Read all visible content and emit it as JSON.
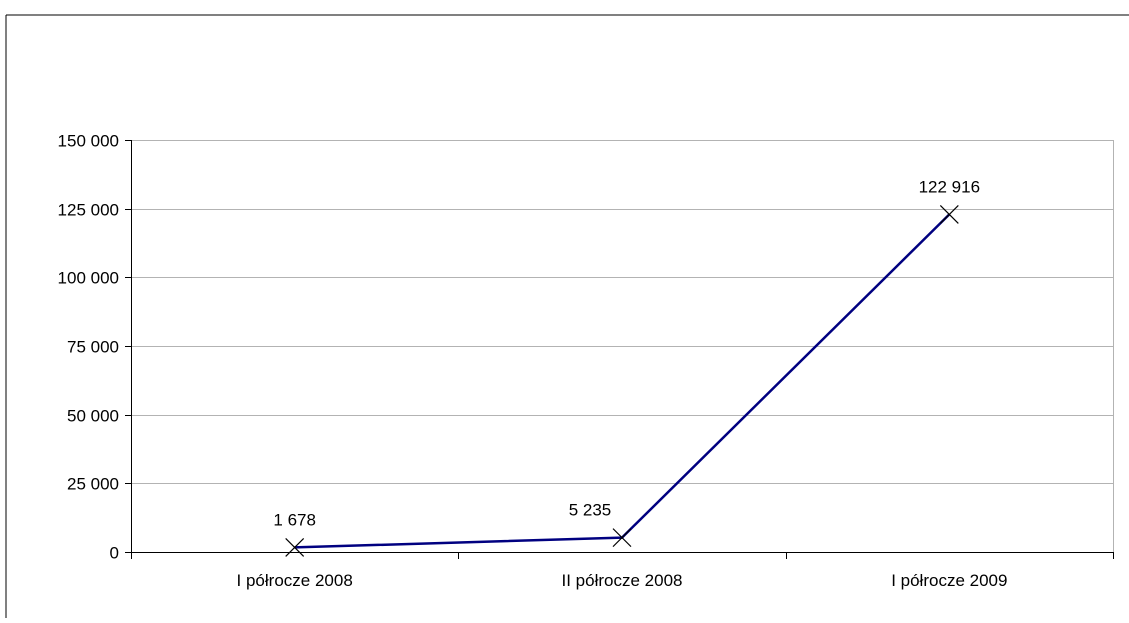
{
  "chart_data": {
    "type": "line",
    "title": "",
    "xlabel": "",
    "ylabel": "",
    "categories": [
      "I półrocze 2008",
      "II półrocze 2008",
      "I półrocze 2009"
    ],
    "series": [
      {
        "values": [
          1678,
          5235,
          122916
        ],
        "data_labels": [
          "1 678",
          "5 235",
          "122 916"
        ],
        "color": "#000080",
        "marker": "x"
      }
    ],
    "ylim": [
      0,
      150000
    ],
    "yticks": [
      0,
      25000,
      50000,
      75000,
      100000,
      125000,
      150000
    ],
    "ytick_labels": [
      "0",
      "25 000",
      "50 000",
      "75 000",
      "100 000",
      "125 000",
      "150 000"
    ],
    "grid": true,
    "legend": "none"
  }
}
